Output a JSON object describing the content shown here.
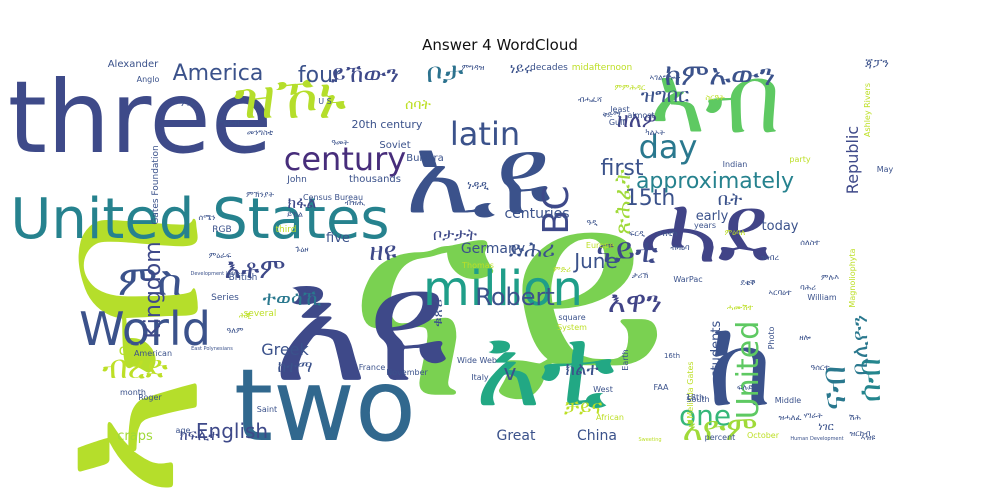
{
  "chart_data": {
    "type": "wordcloud",
    "title": "Answer 4 WordCloud",
    "colormap": "viridis",
    "words": [
      {
        "text": "ናይ",
        "rank": 1,
        "color": "#7ad151"
      },
      {
        "text": "ኣብ",
        "rank": 1,
        "color": "#b5de2b"
      },
      {
        "text": "እዩ",
        "rank": 2,
        "color": "#3e4989"
      },
      {
        "text": "ኣብ",
        "rank": 3,
        "color": "#5ec962"
      },
      {
        "text": "ኢዩ",
        "rank": 3,
        "color": "#3b528b"
      },
      {
        "text": "ሓደ",
        "rank": 3,
        "color": "#414487"
      },
      {
        "text": "ከ",
        "rank": 3,
        "color": "#3b528b"
      },
      {
        "text": "three",
        "rank": 4,
        "color": "#3e4a89"
      },
      {
        "text": "two",
        "rank": 4,
        "color": "#31688e"
      },
      {
        "text": "እቲ",
        "rank": 4,
        "color": "#22a884"
      },
      {
        "text": "United States",
        "rank": 5,
        "color": "#26828e"
      },
      {
        "text": "million",
        "rank": 6,
        "color": "#1f9e89"
      },
      {
        "text": "World",
        "rank": 6,
        "color": "#3b528b"
      },
      {
        "text": "ዝኾኑ",
        "rank": 7,
        "color": "#b5de2b"
      },
      {
        "text": "BC",
        "rank": 7,
        "color": "#3e4989"
      },
      {
        "text": "ሰብ",
        "rank": 7,
        "color": "#24868e"
      },
      {
        "text": "ናይቲ",
        "rank": 7,
        "color": "#3e4989"
      },
      {
        "text": "ምስ",
        "rank": 7,
        "color": "#3b528b"
      },
      {
        "text": "ከምኡውን",
        "rank": 8,
        "color": "#3b528b"
      },
      {
        "text": "latin",
        "rank": 8,
        "color": "#3b528b"
      },
      {
        "text": "century",
        "rank": 8,
        "color": "#472d7b"
      },
      {
        "text": "day",
        "rank": 8,
        "color": "#2a788e"
      },
      {
        "text": "approximately",
        "rank": 8,
        "color": "#26828e"
      },
      {
        "text": "United",
        "rank": 8,
        "color": "#5ec962"
      },
      {
        "text": "one",
        "rank": 8,
        "color": "#35b779"
      },
      {
        "text": "እዮም",
        "rank": 8,
        "color": "#a0da39"
      },
      {
        "text": "ብረድ",
        "rank": 8,
        "color": "#bddf26"
      },
      {
        "text": "እቶም",
        "rank": 8,
        "color": "#3e4989"
      },
      {
        "text": "እዋን",
        "rank": 8,
        "color": "#414487"
      },
      {
        "text": "ናብ",
        "rank": 8,
        "color": "#2a788e"
      },
      {
        "text": "four",
        "rank": 9,
        "color": "#3b528b"
      },
      {
        "text": "ይኸውን",
        "rank": 9,
        "color": "#3e4989"
      },
      {
        "text": "ቦታ",
        "rank": 9,
        "color": "#2c728e"
      },
      {
        "text": "America",
        "rank": 9,
        "color": "#3b528b"
      },
      {
        "text": "Kingdom",
        "rank": 9,
        "color": "#3e4989"
      },
      {
        "text": "Robert",
        "rank": 9,
        "color": "#3b528b"
      },
      {
        "text": "June",
        "rank": 9,
        "color": "#3b528b"
      },
      {
        "text": "first",
        "rank": 9,
        "color": "#3b528b"
      },
      {
        "text": "15th",
        "rank": 9,
        "color": "#3b528b"
      },
      {
        "text": "English",
        "rank": 9,
        "color": "#3e4989"
      },
      {
        "text": "ዘለዎ",
        "rank": 9,
        "color": "#414487"
      },
      {
        "text": "ጽሕፈት",
        "rank": 9,
        "color": "#a0da39"
      },
      {
        "text": "ዝግበር",
        "rank": 9,
        "color": "#3b528b"
      },
      {
        "text": "ተወሳኺ",
        "rank": 9,
        "color": "#2a788e"
      },
      {
        "text": "ቢሊዮን",
        "rank": 9,
        "color": "#2a788e"
      },
      {
        "text": "ዘዩ",
        "rank": 9,
        "color": "#3e4989"
      },
      {
        "text": "ቦታታት",
        "rank": 9,
        "color": "#3e4989"
      },
      {
        "text": "Republic",
        "rank": 10,
        "color": "#3e4989"
      },
      {
        "text": "Greek",
        "rank": 10,
        "color": "#3b528b"
      },
      {
        "text": "Great",
        "rank": 10,
        "color": "#3b528b"
      },
      {
        "text": "China",
        "rank": 10,
        "color": "#3b528b"
      },
      {
        "text": "Germany",
        "rank": 10,
        "color": "#3b528b"
      },
      {
        "text": "centuries",
        "rank": 10,
        "color": "#3b528b"
      },
      {
        "text": "early",
        "rank": 10,
        "color": "#3b528b"
      },
      {
        "text": "today",
        "rank": 10,
        "color": "#3b528b"
      },
      {
        "text": "five",
        "rank": 10,
        "color": "#3b528b"
      },
      {
        "text": "old",
        "rank": 10,
        "color": "#b5de2b"
      },
      {
        "text": "students",
        "rank": 10,
        "color": "#3b528b"
      },
      {
        "text": "craps",
        "rank": 10,
        "color": "#a0da39"
      },
      {
        "text": "v",
        "rank": 10,
        "color": "#3b528b"
      },
      {
        "text": "ክልተ",
        "rank": 10,
        "color": "#3b528b"
      },
      {
        "text": "ቻይና",
        "rank": 10,
        "color": "#bddf26"
      },
      {
        "text": "ድሕሪ",
        "rank": 10,
        "color": "#3b528b"
      },
      {
        "text": "ክፍሊት",
        "rank": 10,
        "color": "#3e4989"
      },
      {
        "text": "ቤት",
        "rank": 10,
        "color": "#3b528b"
      },
      {
        "text": "ከተማ",
        "rank": 10,
        "color": "#3b528b"
      },
      {
        "text": "ክፋል",
        "rank": 10,
        "color": "#3e4989"
      },
      {
        "text": "ቁጽሪ",
        "rank": 10,
        "color": "#3b528b"
      },
      {
        "text": "ሰባት",
        "rank": 10,
        "color": "#bddf26"
      },
      {
        "text": "ነዳዲ",
        "rank": 10,
        "color": "#3b528b"
      },
      {
        "text": "ነገር",
        "rank": 10,
        "color": "#3b528b"
      },
      {
        "text": "20th century",
        "rank": 11,
        "color": "#3b528b"
      },
      {
        "text": "Soviet",
        "rank": 11,
        "color": "#3b528b"
      },
      {
        "text": "thousands",
        "rank": 11,
        "color": "#3b528b"
      },
      {
        "text": "Bulsara",
        "rank": 11,
        "color": "#3b528b"
      },
      {
        "text": "Alexander",
        "rank": 11,
        "color": "#3b528b"
      },
      {
        "text": "Anglo",
        "rank": 11,
        "color": "#3b528b"
      },
      {
        "text": "U S",
        "rank": 11,
        "color": "#3b528b"
      },
      {
        "text": "decades",
        "rank": 11,
        "color": "#3b528b"
      },
      {
        "text": "midafternoon",
        "rank": 11,
        "color": "#bddf26"
      },
      {
        "text": "Gates Foundation",
        "rank": 11,
        "color": "#3b528b"
      },
      {
        "text": "John",
        "rank": 11,
        "color": "#3b528b"
      },
      {
        "text": "RGB",
        "rank": 11,
        "color": "#3b528b"
      },
      {
        "text": "third",
        "rank": 11,
        "color": "#bddf26"
      },
      {
        "text": "British",
        "rank": 11,
        "color": "#3b528b"
      },
      {
        "text": "Series",
        "rank": 11,
        "color": "#3b528b"
      },
      {
        "text": "several",
        "rank": 11,
        "color": "#bddf26"
      },
      {
        "text": "American",
        "rank": 11,
        "color": "#3b528b"
      },
      {
        "text": "month",
        "rank": 11,
        "color": "#3b528b"
      },
      {
        "text": "Roger",
        "rank": 11,
        "color": "#3b528b"
      },
      {
        "text": "Saint",
        "rank": 11,
        "color": "#3b528b"
      },
      {
        "text": "age",
        "rank": 11,
        "color": "#3b528b"
      },
      {
        "text": "France",
        "rank": 11,
        "color": "#3b528b"
      },
      {
        "text": "November",
        "rank": 11,
        "color": "#3b528b"
      },
      {
        "text": "Italy",
        "rank": 11,
        "color": "#3b528b"
      },
      {
        "text": "Wide Web",
        "rank": 11,
        "color": "#3b528b"
      },
      {
        "text": "Census Bureau",
        "rank": 11,
        "color": "#3b528b"
      },
      {
        "text": "Thomas",
        "rank": 11,
        "color": "#bddf26"
      },
      {
        "text": "Europe",
        "rank": 11,
        "color": "#bddf26"
      },
      {
        "text": "square",
        "rank": 11,
        "color": "#3b528b"
      },
      {
        "text": "System",
        "rank": 11,
        "color": "#bddf26"
      },
      {
        "text": "Earth",
        "rank": 11,
        "color": "#3b528b"
      },
      {
        "text": "WarPac",
        "rank": 11,
        "color": "#3b528b"
      },
      {
        "text": "years",
        "rank": 11,
        "color": "#3b528b"
      },
      {
        "text": "Indian",
        "rank": 11,
        "color": "#3b528b"
      },
      {
        "text": "party",
        "rank": 11,
        "color": "#bddf26"
      },
      {
        "text": "least",
        "rank": 11,
        "color": "#3b528b"
      },
      {
        "text": "almost",
        "rank": 11,
        "color": "#3b528b"
      },
      {
        "text": "Gulf",
        "rank": 11,
        "color": "#3b528b"
      },
      {
        "text": "May",
        "rank": 11,
        "color": "#3b528b"
      },
      {
        "text": "Ashley Rivers",
        "rank": 11,
        "color": "#bddf26"
      },
      {
        "text": "Magnoliophyta",
        "rank": 11,
        "color": "#bddf26"
      },
      {
        "text": "William",
        "rank": 11,
        "color": "#3b528b"
      },
      {
        "text": "Photo",
        "rank": 11,
        "color": "#3b528b"
      },
      {
        "text": "Melinda Gates",
        "rank": 11,
        "color": "#bddf26"
      },
      {
        "text": "16th",
        "rank": 11,
        "color": "#3b528b"
      },
      {
        "text": "18th",
        "rank": 11,
        "color": "#3b528b"
      },
      {
        "text": "FAA",
        "rank": 11,
        "color": "#3b528b"
      },
      {
        "text": "West",
        "rank": 11,
        "color": "#3b528b"
      },
      {
        "text": "South",
        "rank": 11,
        "color": "#3b528b"
      },
      {
        "text": "Middle",
        "rank": 11,
        "color": "#3b528b"
      },
      {
        "text": "African",
        "rank": 11,
        "color": "#bddf26"
      },
      {
        "text": "percent",
        "rank": 11,
        "color": "#3b528b"
      },
      {
        "text": "October",
        "rank": 11,
        "color": "#bddf26"
      },
      {
        "text": "Development Index",
        "rank": 12,
        "color": "#3b528b"
      },
      {
        "text": "East Polynesians",
        "rank": 12,
        "color": "#3b528b"
      },
      {
        "text": "Human Development",
        "rank": 12,
        "color": "#3b528b"
      },
      {
        "text": "Sweeting",
        "rank": 12,
        "color": "#bddf26"
      },
      {
        "text": "ንዓኡ",
        "rank": 11,
        "color": "#3b528b"
      },
      {
        "text": "ምግዳዝ",
        "rank": 11,
        "color": "#3b528b"
      },
      {
        "text": "ነይሩ",
        "rank": 11,
        "color": "#3b528b"
      },
      {
        "text": "ጃፓን",
        "rank": 11,
        "color": "#3b528b"
      },
      {
        "text": "ምዕራብ",
        "rank": 11,
        "color": "#3b528b"
      },
      {
        "text": "መንግስቲ",
        "rank": 11,
        "color": "#3b528b"
      },
      {
        "text": "ዓመት",
        "rank": 11,
        "color": "#3b528b"
      },
      {
        "text": "ብዝሒ",
        "rank": 11,
        "color": "#3b528b"
      },
      {
        "text": "ሰሜን",
        "rank": 11,
        "color": "#3b528b"
      },
      {
        "text": "ምኽንያት",
        "rank": 11,
        "color": "#3b528b"
      },
      {
        "text": "ጉዕዞ",
        "rank": 11,
        "color": "#3b528b"
      },
      {
        "text": "ይኸል",
        "rank": 11,
        "color": "#3b528b"
      },
      {
        "text": "ምዕራፍ",
        "rank": 11,
        "color": "#3b528b"
      },
      {
        "text": "ዓለም",
        "rank": 11,
        "color": "#3b528b"
      },
      {
        "text": "ሕጂ",
        "rank": 11,
        "color": "#bddf26"
      },
      {
        "text": "ፍርዲ",
        "rank": 11,
        "color": "#3b528b"
      },
      {
        "text": "ፖለቲካ",
        "rank": 11,
        "color": "#3b528b"
      },
      {
        "text": "ብዛዕባ",
        "rank": 11,
        "color": "#3b528b"
      },
      {
        "text": "ኣገልግሎት",
        "rank": 11,
        "color": "#3b528b"
      },
      {
        "text": "ምምሕዳር",
        "rank": 11,
        "color": "#bddf26"
      },
      {
        "text": "ስርዓት",
        "rank": 11,
        "color": "#bddf26"
      },
      {
        "text": "ብሓፈሻ",
        "rank": 11,
        "color": "#3b528b"
      },
      {
        "text": "ቅድሚ",
        "rank": 11,
        "color": "#3b528b"
      },
      {
        "text": "ካልኦት",
        "rank": 11,
        "color": "#3b528b"
      },
      {
        "text": "ዝነበረ",
        "rank": 11,
        "color": "#3b528b"
      },
      {
        "text": "ሰለስተ",
        "rank": 11,
        "color": "#3b528b"
      },
      {
        "text": "ምሉእ",
        "rank": 11,
        "color": "#3b528b"
      },
      {
        "text": "ኣርባዕተ",
        "rank": 11,
        "color": "#3b528b"
      },
      {
        "text": "ሓሙሽተ",
        "rank": 11,
        "color": "#bddf26"
      },
      {
        "text": "ዘሎ",
        "rank": 11,
        "color": "#3b528b"
      },
      {
        "text": "ዓሰርተ",
        "rank": 11,
        "color": "#3b528b"
      },
      {
        "text": "ሽሕ",
        "rank": 11,
        "color": "#3b528b"
      },
      {
        "text": "ፍሉይ",
        "rank": 11,
        "color": "#3b528b"
      },
      {
        "text": "ዝሓለፈ",
        "rank": 11,
        "color": "#3b528b"
      },
      {
        "text": "ኣዝዩ",
        "rank": 11,
        "color": "#3b528b"
      },
      {
        "text": "ሃገራት",
        "rank": 11,
        "color": "#3b528b"
      },
      {
        "text": "ታሪኽ",
        "rank": 11,
        "color": "#3b528b"
      },
      {
        "text": "ምድሪ",
        "rank": 11,
        "color": "#bddf26"
      },
      {
        "text": "ዓዲ",
        "rank": 11,
        "color": "#3b528b"
      },
      {
        "text": "ባሕሪ",
        "rank": 11,
        "color": "#3b528b"
      },
      {
        "text": "ደቂቕ",
        "rank": 11,
        "color": "#3b528b"
      },
      {
        "text": "ምዕባለ",
        "rank": 11,
        "color": "#bddf26"
      },
      {
        "text": "ዝርከብ",
        "rank": 11,
        "color": "#3b528b"
      }
    ]
  }
}
